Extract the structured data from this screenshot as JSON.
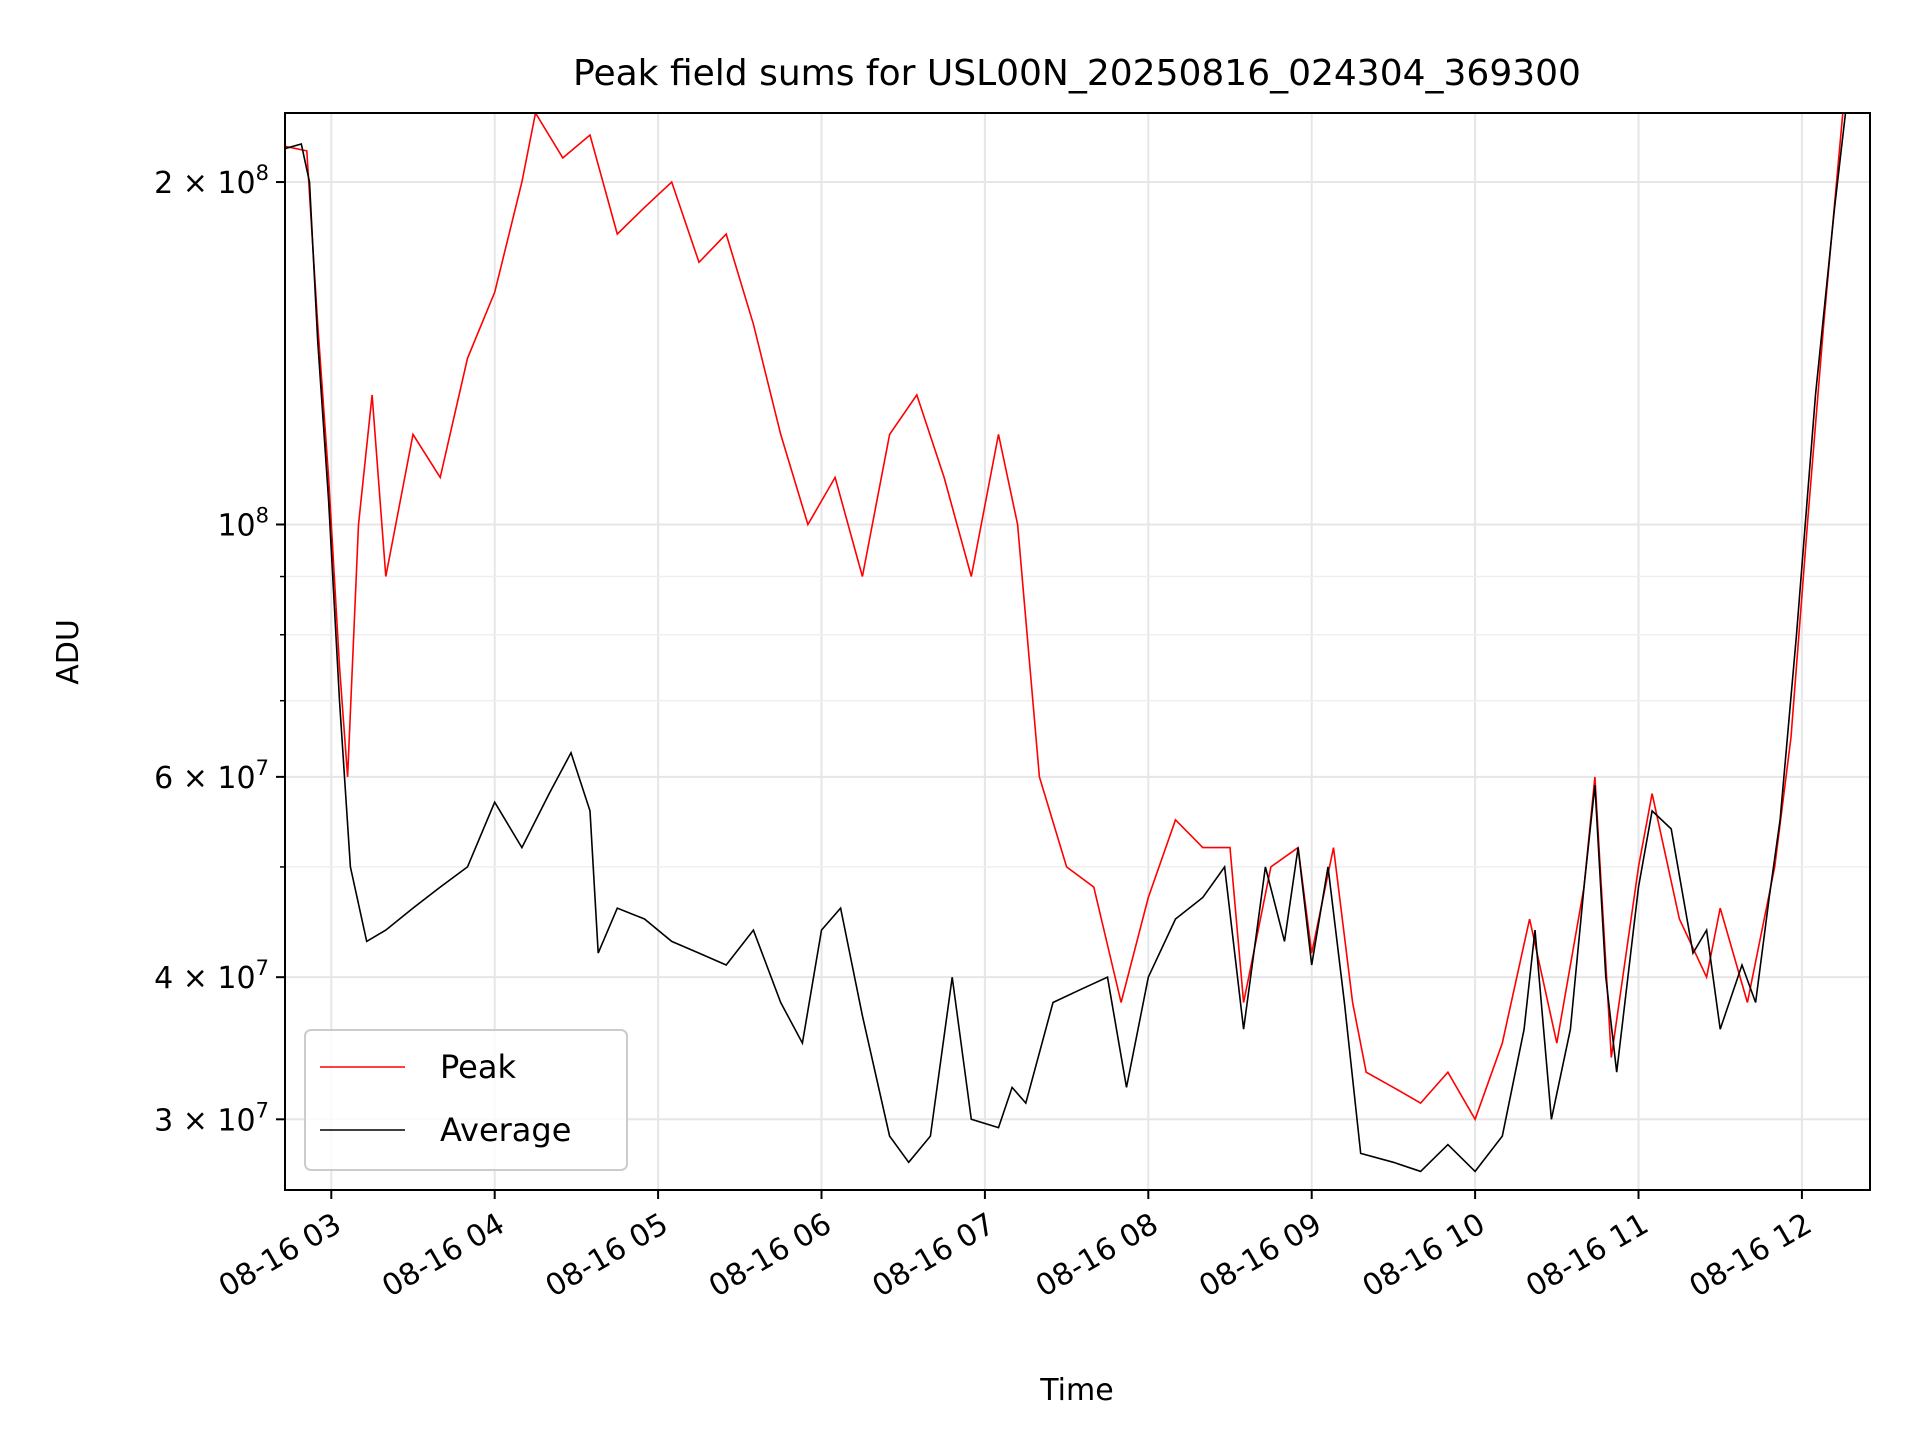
{
  "chart_data": {
    "type": "line",
    "title": "Peak field sums for USL00N_20250816_024304_369300",
    "xlabel": "Time",
    "ylabel": "ADU",
    "yscale": "log",
    "grid": true,
    "legend_position": "lower-left",
    "xlim": [
      "2025-08-16 02:43",
      "2025-08-16 12:25"
    ],
    "ylim": [
      26000000,
      230000000
    ],
    "x_ticks": [
      {
        "value": "2025-08-16 03:00",
        "label": "08-16 03"
      },
      {
        "value": "2025-08-16 04:00",
        "label": "08-16 04"
      },
      {
        "value": "2025-08-16 05:00",
        "label": "08-16 05"
      },
      {
        "value": "2025-08-16 06:00",
        "label": "08-16 06"
      },
      {
        "value": "2025-08-16 07:00",
        "label": "08-16 07"
      },
      {
        "value": "2025-08-16 08:00",
        "label": "08-16 08"
      },
      {
        "value": "2025-08-16 09:00",
        "label": "08-16 09"
      },
      {
        "value": "2025-08-16 10:00",
        "label": "08-16 10"
      },
      {
        "value": "2025-08-16 11:00",
        "label": "08-16 11"
      },
      {
        "value": "2025-08-16 12:00",
        "label": "08-16 12"
      }
    ],
    "y_ticks_major": [
      {
        "value": 30000000,
        "mantissa": "3",
        "exponent": "7"
      },
      {
        "value": 40000000,
        "mantissa": "4",
        "exponent": "7"
      },
      {
        "value": 60000000,
        "mantissa": "6",
        "exponent": "7"
      },
      {
        "value": 100000000,
        "mantissa": "",
        "exponent": "8"
      },
      {
        "value": 200000000,
        "mantissa": "2",
        "exponent": "8"
      }
    ],
    "y_ticks_minor": [
      50000000,
      70000000,
      80000000,
      90000000
    ],
    "series": [
      {
        "name": "Peak",
        "color": "#ff0000",
        "points": [
          [
            "2025-08-16 02:43",
            215000000
          ],
          [
            "2025-08-16 02:51",
            213000000
          ],
          [
            "2025-08-16 02:55",
            150000000
          ],
          [
            "2025-08-16 02:59",
            110000000
          ],
          [
            "2025-08-16 03:03",
            75000000
          ],
          [
            "2025-08-16 03:06",
            60000000
          ],
          [
            "2025-08-16 03:10",
            100000000
          ],
          [
            "2025-08-16 03:15",
            130000000
          ],
          [
            "2025-08-16 03:20",
            90000000
          ],
          [
            "2025-08-16 03:30",
            120000000
          ],
          [
            "2025-08-16 03:40",
            110000000
          ],
          [
            "2025-08-16 03:50",
            140000000
          ],
          [
            "2025-08-16 04:00",
            160000000
          ],
          [
            "2025-08-16 04:10",
            200000000
          ],
          [
            "2025-08-16 04:15",
            230000000
          ],
          [
            "2025-08-16 04:25",
            210000000
          ],
          [
            "2025-08-16 04:35",
            220000000
          ],
          [
            "2025-08-16 04:45",
            180000000
          ],
          [
            "2025-08-16 04:55",
            190000000
          ],
          [
            "2025-08-16 05:05",
            200000000
          ],
          [
            "2025-08-16 05:15",
            170000000
          ],
          [
            "2025-08-16 05:25",
            180000000
          ],
          [
            "2025-08-16 05:35",
            150000000
          ],
          [
            "2025-08-16 05:45",
            120000000
          ],
          [
            "2025-08-16 05:55",
            100000000
          ],
          [
            "2025-08-16 06:05",
            110000000
          ],
          [
            "2025-08-16 06:15",
            90000000
          ],
          [
            "2025-08-16 06:25",
            120000000
          ],
          [
            "2025-08-16 06:35",
            130000000
          ],
          [
            "2025-08-16 06:45",
            110000000
          ],
          [
            "2025-08-16 06:55",
            90000000
          ],
          [
            "2025-08-16 07:05",
            120000000
          ],
          [
            "2025-08-16 07:12",
            100000000
          ],
          [
            "2025-08-16 07:20",
            60000000
          ],
          [
            "2025-08-16 07:30",
            50000000
          ],
          [
            "2025-08-16 07:40",
            48000000
          ],
          [
            "2025-08-16 07:50",
            38000000
          ],
          [
            "2025-08-16 08:00",
            47000000
          ],
          [
            "2025-08-16 08:10",
            55000000
          ],
          [
            "2025-08-16 08:20",
            52000000
          ],
          [
            "2025-08-16 08:30",
            52000000
          ],
          [
            "2025-08-16 08:35",
            38000000
          ],
          [
            "2025-08-16 08:45",
            50000000
          ],
          [
            "2025-08-16 08:55",
            52000000
          ],
          [
            "2025-08-16 09:00",
            42000000
          ],
          [
            "2025-08-16 09:08",
            52000000
          ],
          [
            "2025-08-16 09:15",
            38000000
          ],
          [
            "2025-08-16 09:20",
            33000000
          ],
          [
            "2025-08-16 09:30",
            32000000
          ],
          [
            "2025-08-16 09:40",
            31000000
          ],
          [
            "2025-08-16 09:50",
            33000000
          ],
          [
            "2025-08-16 10:00",
            30000000
          ],
          [
            "2025-08-16 10:10",
            35000000
          ],
          [
            "2025-08-16 10:20",
            45000000
          ],
          [
            "2025-08-16 10:30",
            35000000
          ],
          [
            "2025-08-16 10:40",
            48000000
          ],
          [
            "2025-08-16 10:44",
            60000000
          ],
          [
            "2025-08-16 10:50",
            34000000
          ],
          [
            "2025-08-16 11:00",
            50000000
          ],
          [
            "2025-08-16 11:05",
            58000000
          ],
          [
            "2025-08-16 11:15",
            45000000
          ],
          [
            "2025-08-16 11:25",
            40000000
          ],
          [
            "2025-08-16 11:30",
            46000000
          ],
          [
            "2025-08-16 11:40",
            38000000
          ],
          [
            "2025-08-16 11:50",
            50000000
          ],
          [
            "2025-08-16 11:56",
            65000000
          ],
          [
            "2025-08-16 12:02",
            100000000
          ],
          [
            "2025-08-16 12:08",
            150000000
          ],
          [
            "2025-08-16 12:15",
            230000000
          ]
        ]
      },
      {
        "name": "Average",
        "color": "#000000",
        "points": [
          [
            "2025-08-16 02:43",
            214000000
          ],
          [
            "2025-08-16 02:49",
            216000000
          ],
          [
            "2025-08-16 02:52",
            200000000
          ],
          [
            "2025-08-16 02:55",
            145000000
          ],
          [
            "2025-08-16 02:59",
            105000000
          ],
          [
            "2025-08-16 03:03",
            70000000
          ],
          [
            "2025-08-16 03:07",
            50000000
          ],
          [
            "2025-08-16 03:13",
            43000000
          ],
          [
            "2025-08-16 03:20",
            44000000
          ],
          [
            "2025-08-16 03:30",
            46000000
          ],
          [
            "2025-08-16 03:40",
            48000000
          ],
          [
            "2025-08-16 03:50",
            50000000
          ],
          [
            "2025-08-16 04:00",
            57000000
          ],
          [
            "2025-08-16 04:10",
            52000000
          ],
          [
            "2025-08-16 04:20",
            58000000
          ],
          [
            "2025-08-16 04:28",
            63000000
          ],
          [
            "2025-08-16 04:35",
            56000000
          ],
          [
            "2025-08-16 04:38",
            42000000
          ],
          [
            "2025-08-16 04:45",
            46000000
          ],
          [
            "2025-08-16 04:55",
            45000000
          ],
          [
            "2025-08-16 05:05",
            43000000
          ],
          [
            "2025-08-16 05:15",
            42000000
          ],
          [
            "2025-08-16 05:25",
            41000000
          ],
          [
            "2025-08-16 05:35",
            44000000
          ],
          [
            "2025-08-16 05:45",
            38000000
          ],
          [
            "2025-08-16 05:53",
            35000000
          ],
          [
            "2025-08-16 06:00",
            44000000
          ],
          [
            "2025-08-16 06:07",
            46000000
          ],
          [
            "2025-08-16 06:15",
            37000000
          ],
          [
            "2025-08-16 06:25",
            29000000
          ],
          [
            "2025-08-16 06:32",
            27500000
          ],
          [
            "2025-08-16 06:40",
            29000000
          ],
          [
            "2025-08-16 06:48",
            40000000
          ],
          [
            "2025-08-16 06:55",
            30000000
          ],
          [
            "2025-08-16 07:05",
            29500000
          ],
          [
            "2025-08-16 07:10",
            32000000
          ],
          [
            "2025-08-16 07:15",
            31000000
          ],
          [
            "2025-08-16 07:25",
            38000000
          ],
          [
            "2025-08-16 07:35",
            39000000
          ],
          [
            "2025-08-16 07:45",
            40000000
          ],
          [
            "2025-08-16 07:52",
            32000000
          ],
          [
            "2025-08-16 08:00",
            40000000
          ],
          [
            "2025-08-16 08:10",
            45000000
          ],
          [
            "2025-08-16 08:20",
            47000000
          ],
          [
            "2025-08-16 08:28",
            50000000
          ],
          [
            "2025-08-16 08:35",
            36000000
          ],
          [
            "2025-08-16 08:43",
            50000000
          ],
          [
            "2025-08-16 08:50",
            43000000
          ],
          [
            "2025-08-16 08:55",
            52000000
          ],
          [
            "2025-08-16 09:00",
            41000000
          ],
          [
            "2025-08-16 09:06",
            50000000
          ],
          [
            "2025-08-16 09:12",
            38000000
          ],
          [
            "2025-08-16 09:18",
            28000000
          ],
          [
            "2025-08-16 09:30",
            27500000
          ],
          [
            "2025-08-16 09:40",
            27000000
          ],
          [
            "2025-08-16 09:50",
            28500000
          ],
          [
            "2025-08-16 10:00",
            27000000
          ],
          [
            "2025-08-16 10:10",
            29000000
          ],
          [
            "2025-08-16 10:18",
            36000000
          ],
          [
            "2025-08-16 10:22",
            44000000
          ],
          [
            "2025-08-16 10:28",
            30000000
          ],
          [
            "2025-08-16 10:35",
            36000000
          ],
          [
            "2025-08-16 10:40",
            48000000
          ],
          [
            "2025-08-16 10:44",
            59000000
          ],
          [
            "2025-08-16 10:48",
            40000000
          ],
          [
            "2025-08-16 10:52",
            33000000
          ],
          [
            "2025-08-16 11:00",
            48000000
          ],
          [
            "2025-08-16 11:05",
            56000000
          ],
          [
            "2025-08-16 11:12",
            54000000
          ],
          [
            "2025-08-16 11:20",
            42000000
          ],
          [
            "2025-08-16 11:25",
            44000000
          ],
          [
            "2025-08-16 11:30",
            36000000
          ],
          [
            "2025-08-16 11:38",
            41000000
          ],
          [
            "2025-08-16 11:43",
            38000000
          ],
          [
            "2025-08-16 11:48",
            47000000
          ],
          [
            "2025-08-16 11:52",
            55000000
          ],
          [
            "2025-08-16 11:58",
            80000000
          ],
          [
            "2025-08-16 12:05",
            130000000
          ],
          [
            "2025-08-16 12:12",
            190000000
          ],
          [
            "2025-08-16 12:16",
            230000000
          ]
        ]
      }
    ]
  }
}
